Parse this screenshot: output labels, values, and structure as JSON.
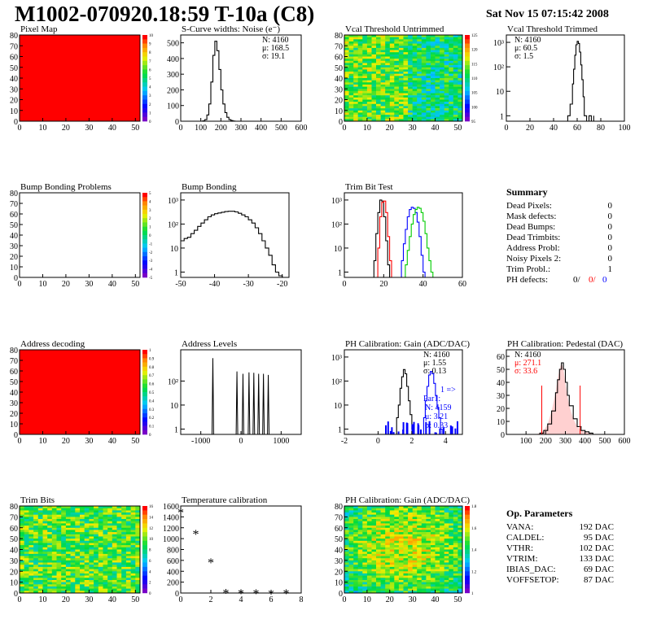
{
  "header": {
    "title": "M1002-070920.18:59 T-10a (C8)",
    "date": "Sat Nov 15 07:15:42 2008"
  },
  "colors": {
    "red": "#ff0000",
    "blue": "#0000ff",
    "green": "#00cc00",
    "black": "#000000"
  },
  "chart_data": [
    {
      "id": "pixel-map",
      "type": "heatmap",
      "title": "Pixel Map",
      "xlim": [
        0,
        52
      ],
      "ylim": [
        0,
        80
      ],
      "xticks": [
        0,
        10,
        20,
        30,
        40,
        50
      ],
      "yticks": [
        0,
        10,
        20,
        30,
        40,
        50,
        60,
        70,
        80
      ],
      "fill": "uniform-max",
      "zlim": [
        0,
        10
      ],
      "zticks": [
        "10",
        "9",
        "8",
        "7",
        "6",
        "5",
        "4",
        "3",
        "2",
        "1",
        "0"
      ]
    },
    {
      "id": "scurve-noise",
      "type": "line",
      "title": "S-Curve widths: Noise (e⁻)",
      "xlim": [
        0,
        600
      ],
      "ylim": [
        0,
        550
      ],
      "xticks": [
        0,
        100,
        200,
        300,
        400,
        500,
        600
      ],
      "yticks": [
        0,
        100,
        200,
        300,
        400,
        500
      ],
      "series": [
        {
          "x": [
            95,
            110,
            120,
            130,
            140,
            150,
            160,
            170,
            180,
            190,
            200,
            210,
            220,
            230,
            240,
            250,
            260,
            270
          ],
          "y": [
            0,
            2,
            10,
            40,
            110,
            250,
            420,
            510,
            450,
            330,
            200,
            110,
            55,
            25,
            10,
            4,
            1,
            0
          ]
        }
      ],
      "stats": [
        "N: 4160",
        "μ: 168.5",
        "σ: 19.1"
      ]
    },
    {
      "id": "vcal-untrimmed",
      "type": "heatmap",
      "title": "Vcal Threshold Untrimmed",
      "xlim": [
        0,
        52
      ],
      "ylim": [
        0,
        80
      ],
      "xticks": [
        0,
        10,
        20,
        30,
        40,
        50
      ],
      "yticks": [
        0,
        10,
        20,
        30,
        40,
        50,
        60,
        70,
        80
      ],
      "fill": "noise-cool",
      "zlim": [
        95,
        125
      ],
      "zticks": [
        "125",
        "120",
        "115",
        "110",
        "105",
        "100",
        "95"
      ]
    },
    {
      "id": "vcal-trimmed",
      "type": "line",
      "title": "Vcal Threshold Trimmed",
      "logy": true,
      "xlim": [
        0,
        100
      ],
      "ylim": [
        0.6,
        2000
      ],
      "xticks": [
        0,
        20,
        40,
        60,
        80,
        100
      ],
      "yticks": [
        "1",
        "10",
        "10²",
        "10³"
      ],
      "series": [
        {
          "x": [
            50,
            52,
            54,
            56,
            57,
            58,
            59,
            60,
            61,
            62,
            63,
            64,
            65,
            66,
            68,
            70,
            72,
            74
          ],
          "y": [
            0.6,
            1,
            3,
            20,
            80,
            300,
            800,
            1100,
            900,
            400,
            120,
            30,
            6,
            1,
            0.6,
            1,
            0.6,
            1
          ]
        }
      ],
      "stats": [
        "N: 4160",
        "μ: 60.5",
        "σ:  1.5"
      ]
    },
    {
      "id": "bump-bonding-problems",
      "type": "heatmap",
      "title": "Bump Bonding Problems",
      "xlim": [
        0,
        52
      ],
      "ylim": [
        0,
        80
      ],
      "xticks": [
        0,
        10,
        20,
        30,
        40,
        50
      ],
      "yticks": [
        0,
        10,
        20,
        30,
        40,
        50,
        60,
        70,
        80
      ],
      "fill": "empty",
      "zlim": [
        -5,
        5
      ],
      "zticks": [
        "5",
        "4",
        "3",
        "2",
        "1",
        "0",
        "-1",
        "-2",
        "-3",
        "-4",
        "-5"
      ]
    },
    {
      "id": "bump-bonding",
      "type": "line",
      "title": "Bump Bonding",
      "logy": true,
      "xlim": [
        -50,
        -18
      ],
      "ylim": [
        0.6,
        2000
      ],
      "xticks": [
        -50,
        -40,
        -30,
        -20
      ],
      "yticks": [
        "1",
        "10",
        "10²",
        "10³"
      ],
      "series": [
        {
          "x": [
            -50,
            -49,
            -48,
            -47,
            -46,
            -45,
            -44,
            -43,
            -42,
            -41,
            -40,
            -39,
            -38,
            -37,
            -36,
            -35,
            -34,
            -33,
            -32,
            -31,
            -30,
            -29,
            -28,
            -27,
            -26,
            -25,
            -24,
            -23,
            -22,
            -21,
            -20
          ],
          "y": [
            20,
            25,
            28,
            40,
            55,
            80,
            110,
            150,
            200,
            240,
            270,
            290,
            310,
            330,
            340,
            340,
            320,
            280,
            240,
            200,
            150,
            110,
            70,
            40,
            20,
            10,
            5,
            2,
            1,
            0.7,
            0.6
          ]
        }
      ]
    },
    {
      "id": "trim-bit-test",
      "type": "line",
      "title": "Trim Bit Test",
      "logy": true,
      "xlim": [
        0,
        60
      ],
      "ylim": [
        0.6,
        2000
      ],
      "xticks": [
        0,
        20,
        40,
        60
      ],
      "yticks": [
        "1",
        "10",
        "10²",
        "10³"
      ],
      "series": [
        {
          "color": "black",
          "x": [
            14,
            15,
            16,
            17,
            18,
            19,
            20,
            21,
            22,
            23
          ],
          "y": [
            0.6,
            3,
            40,
            300,
            1000,
            900,
            200,
            20,
            2,
            0.6
          ]
        },
        {
          "color": "red",
          "x": [
            16,
            17,
            18,
            19,
            20,
            21,
            22,
            23,
            24
          ],
          "y": [
            0.6,
            10,
            200,
            800,
            900,
            300,
            30,
            3,
            0.6
          ]
        },
        {
          "color": "blue",
          "x": [
            28,
            29,
            30,
            31,
            32,
            33,
            34,
            35,
            36,
            37,
            38,
            39,
            40,
            41
          ],
          "y": [
            0.6,
            3,
            15,
            60,
            200,
            400,
            500,
            450,
            300,
            120,
            30,
            5,
            1,
            0.6
          ]
        },
        {
          "color": "green",
          "x": [
            30,
            31,
            32,
            33,
            34,
            35,
            36,
            37,
            38,
            39,
            40,
            41,
            42,
            43,
            44,
            45
          ],
          "y": [
            0.6,
            2,
            8,
            30,
            100,
            250,
            400,
            500,
            450,
            300,
            130,
            40,
            10,
            3,
            1,
            0.6
          ]
        }
      ]
    },
    {
      "id": "address-decoding",
      "type": "heatmap",
      "title": "Address decoding",
      "xlim": [
        0,
        52
      ],
      "ylim": [
        0,
        80
      ],
      "xticks": [
        0,
        10,
        20,
        30,
        40,
        50
      ],
      "yticks": [
        0,
        10,
        20,
        30,
        40,
        50,
        60,
        70,
        80
      ],
      "fill": "uniform-max",
      "zlim": [
        0,
        1
      ],
      "zticks": [
        "1",
        "0.9",
        "0.8",
        "0.7",
        "0.6",
        "0.5",
        "0.4",
        "0.3",
        "0.2",
        "0.1",
        "0"
      ]
    },
    {
      "id": "address-levels",
      "type": "line",
      "title": "Address Levels",
      "logy": true,
      "xlim": [
        -1500,
        1500
      ],
      "ylim": [
        0.6,
        2000
      ],
      "xticks": [
        -1000,
        0,
        1000
      ],
      "yticks": [
        "1",
        "10",
        "10²"
      ],
      "peaks": [
        -700,
        -100,
        50,
        200,
        320,
        440,
        560,
        680
      ],
      "peakHeights": [
        900,
        250,
        200,
        230,
        220,
        200,
        200,
        180
      ]
    },
    {
      "id": "ph-gain",
      "type": "line",
      "title": "PH Calibration: Gain (ADC/DAC)",
      "logy": true,
      "xlim": [
        -2,
        5
      ],
      "ylim": [
        0.6,
        2000
      ],
      "xticks": [
        -2,
        0,
        2,
        4
      ],
      "yticks": [
        "1",
        "10",
        "10²",
        "10³"
      ],
      "series": [
        {
          "color": "black",
          "x": [
            1.0,
            1.1,
            1.2,
            1.3,
            1.4,
            1.5,
            1.6,
            1.7,
            1.8,
            1.9,
            2.0,
            2.1
          ],
          "y": [
            0.6,
            3,
            10,
            50,
            150,
            300,
            200,
            60,
            15,
            4,
            1,
            0.6
          ]
        },
        {
          "color": "blue",
          "x": [
            2.6,
            2.7,
            2.8,
            2.9,
            3.0,
            3.1,
            3.2,
            3.3,
            3.4,
            3.5,
            3.6,
            3.7,
            3.8
          ],
          "y": [
            0.6,
            3,
            15,
            60,
            180,
            250,
            200,
            80,
            25,
            8,
            3,
            1,
            0.6
          ]
        }
      ],
      "stats": [
        "N: 4160",
        "μ: 1.55",
        "σ: 0.13"
      ],
      "overlay": [
        "1 =>",
        "Par1:",
        "N: 4159",
        "μ: 3.21",
        "σ: 0.33"
      ]
    },
    {
      "id": "ph-pedestal",
      "type": "line",
      "title": "PH Calibration: Pedestal (DAC)",
      "xlim": [
        0,
        600
      ],
      "ylim": [
        0,
        65
      ],
      "xticks": [
        100,
        200,
        300,
        400,
        500,
        600
      ],
      "yticks": [
        0,
        10,
        20,
        30,
        40,
        50,
        60
      ],
      "series": [
        {
          "x": [
            150,
            170,
            190,
            210,
            230,
            250,
            260,
            270,
            280,
            290,
            300,
            310,
            320,
            340,
            360,
            380,
            400,
            420,
            440
          ],
          "y": [
            0,
            1,
            3,
            8,
            18,
            32,
            42,
            50,
            55,
            50,
            40,
            30,
            22,
            12,
            6,
            3,
            2,
            1,
            0
          ]
        }
      ],
      "markers": [
        180,
        375
      ],
      "stats": [
        "N: 4160",
        "μ: 271.1",
        "σ: 33.6"
      ]
    },
    {
      "id": "trim-bits",
      "type": "heatmap",
      "title": "Trim Bits",
      "xlim": [
        0,
        52
      ],
      "ylim": [
        0,
        80
      ],
      "xticks": [
        0,
        10,
        20,
        30,
        40,
        50
      ],
      "yticks": [
        0,
        10,
        20,
        30,
        40,
        50,
        60,
        70,
        80
      ],
      "fill": "noise-warm",
      "zlim": [
        0,
        16
      ],
      "zticks": [
        "16",
        "14",
        "12",
        "10",
        "8",
        "6",
        "4",
        "2",
        "0"
      ]
    },
    {
      "id": "temperature-calibration",
      "type": "scatter",
      "title": "Temperature calibration",
      "xlim": [
        0,
        8
      ],
      "ylim": [
        0,
        1600
      ],
      "xticks": [
        0,
        2,
        4,
        6,
        8
      ],
      "yticks": [
        0,
        200,
        400,
        600,
        800,
        1000,
        1200,
        1400,
        1600
      ],
      "series": [
        {
          "x": [
            0,
            1,
            2,
            3,
            4,
            5,
            6,
            7
          ],
          "y": [
            1500,
            1110,
            580,
            25,
            15,
            15,
            10,
            15
          ]
        }
      ]
    },
    {
      "id": "ph-gain-map",
      "type": "heatmap",
      "title": "PH Calibration: Gain (ADC/DAC)",
      "xlim": [
        0,
        52
      ],
      "ylim": [
        0,
        80
      ],
      "xticks": [
        0,
        10,
        20,
        30,
        40,
        50
      ],
      "yticks": [
        0,
        10,
        20,
        30,
        40,
        50,
        60,
        70,
        80
      ],
      "fill": "noise-hot",
      "zlim": [
        1,
        1.8
      ],
      "zticks": [
        "1.8",
        "1.6",
        "1.4",
        "1.2",
        "1"
      ]
    }
  ],
  "summary": {
    "title": "Summary",
    "rows": [
      {
        "label": "Dead Pixels:",
        "value": "0"
      },
      {
        "label": "Mask defects:",
        "value": "0"
      },
      {
        "label": "Dead Bumps:",
        "value": "0"
      },
      {
        "label": "Dead Trimbits:",
        "value": "0"
      },
      {
        "label": "Address Probl:",
        "value": "0"
      },
      {
        "label": "Noisy Pixels 2:",
        "value": "0"
      },
      {
        "label": "Trim Probl.:",
        "value": "1"
      }
    ],
    "ph": {
      "label": "PH defects:",
      "v1": "0/",
      "v2": "0/",
      "v3": "0"
    }
  },
  "params": {
    "title": "Op. Parameters",
    "rows": [
      {
        "label": "VANA:",
        "value": "192 DAC"
      },
      {
        "label": "CALDEL:",
        "value": "95 DAC"
      },
      {
        "label": "VTHR:",
        "value": "102 DAC"
      },
      {
        "label": "VTRIM:",
        "value": "133 DAC"
      },
      {
        "label": "IBIAS_DAC:",
        "value": "69 DAC"
      },
      {
        "label": "VOFFSETOP:",
        "value": "87 DAC"
      }
    ]
  }
}
